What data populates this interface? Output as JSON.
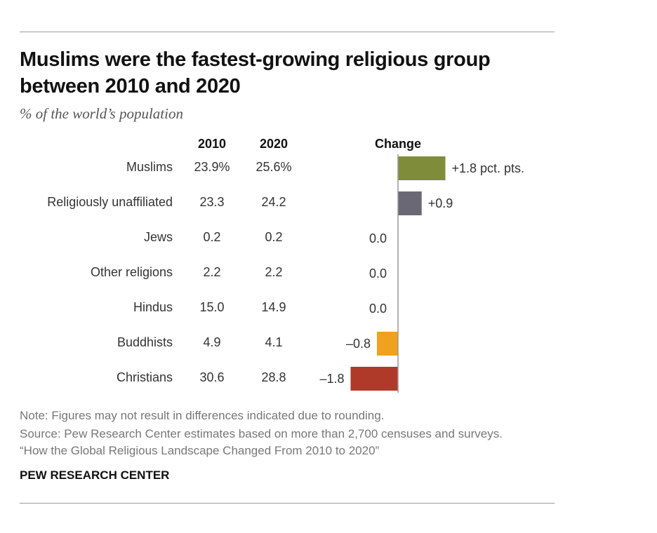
{
  "title": "Muslims were the fastest-growing religious group between 2010 and 2020",
  "subtitle": "% of the world’s population",
  "chart_data": {
    "type": "bar",
    "orientation": "horizontal",
    "columns": [
      "2010",
      "2020",
      "Change"
    ],
    "categories": [
      "Muslims",
      "Religiously unaffiliated",
      "Jews",
      "Other religions",
      "Hindus",
      "Buddhists",
      "Christians"
    ],
    "values_2010": [
      "23.9%",
      "23.3",
      "0.2",
      "2.2",
      "15.0",
      "4.9",
      "30.6"
    ],
    "values_2020": [
      "25.6%",
      "24.2",
      "0.2",
      "2.2",
      "14.9",
      "4.1",
      "28.8"
    ],
    "change": [
      1.8,
      0.9,
      0.0,
      0.0,
      0.0,
      -0.8,
      -1.8
    ],
    "change_labels": [
      "+1.8 pct. pts.",
      "+0.9",
      "0.0",
      "0.0",
      "0.0",
      "–0.8",
      "–1.8"
    ],
    "colors": [
      "#7f8c3a",
      "#6b6875",
      "#999999",
      "#999999",
      "#999999",
      "#f0a21e",
      "#b03a2a"
    ],
    "axis_color": "#999999"
  },
  "notes": {
    "note": "Note: Figures may not result in differences indicated due to rounding.",
    "source": "Source: Pew Research Center estimates based on more than 2,700 censuses and surveys.",
    "report": "“How the Global Religious Landscape Changed From 2010 to 2020”"
  },
  "brand": "PEW RESEARCH CENTER"
}
